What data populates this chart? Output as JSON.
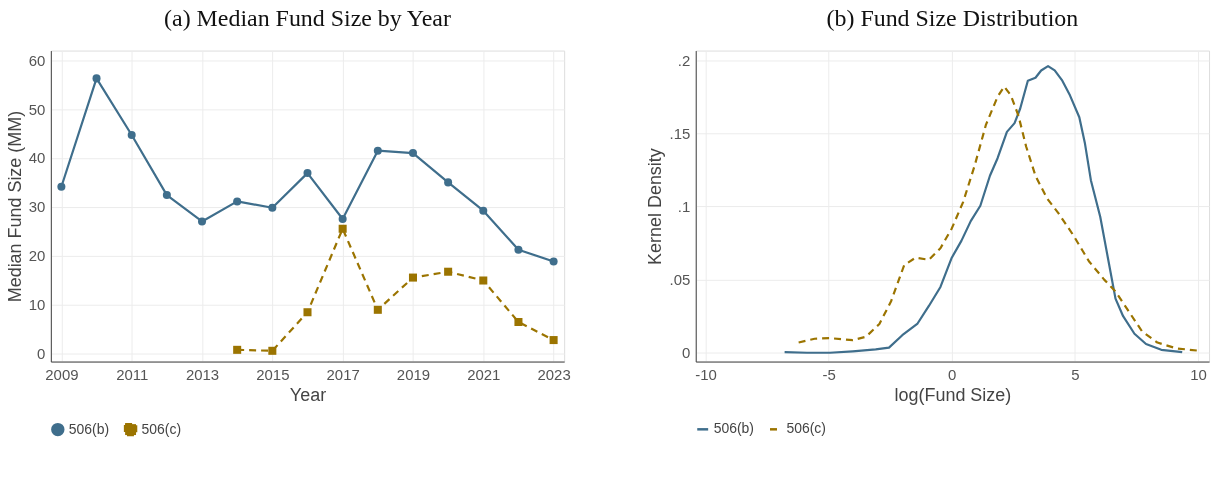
{
  "chart_data": [
    {
      "type": "line",
      "title": "(a) Median Fund Size by Year",
      "xlabel": "Year",
      "ylabel": "Median Fund Size (MM)",
      "xlim": [
        2008.7,
        2023.3
      ],
      "xticks": [
        2009,
        2011,
        2013,
        2015,
        2017,
        2019,
        2021,
        2023
      ],
      "ylim": [
        -1.7,
        62
      ],
      "yticks": [
        0,
        10,
        20,
        30,
        40,
        50,
        60
      ],
      "grid": true,
      "legend": "bottom",
      "series": [
        {
          "name": "506(b)",
          "color": "#3f6e8c",
          "marker": "circle",
          "line_style": "solid",
          "x": [
            2009,
            2010,
            2011,
            2012,
            2013,
            2014,
            2015,
            2016,
            2017,
            2018,
            2019,
            2020,
            2021,
            2022,
            2023
          ],
          "values": [
            34.1,
            56.3,
            44.7,
            32.4,
            27.0,
            31.1,
            29.8,
            36.9,
            27.5,
            41.5,
            41.0,
            35.0,
            29.2,
            21.2,
            18.8
          ]
        },
        {
          "name": "506(c)",
          "color": "#9b7400",
          "marker": "square",
          "line_style": "dashed",
          "x": [
            2014,
            2015,
            2016,
            2017,
            2018,
            2019,
            2020,
            2021,
            2022,
            2023
          ],
          "values": [
            0.7,
            0.5,
            8.4,
            25.5,
            8.9,
            15.5,
            16.7,
            14.9,
            6.4,
            2.7
          ]
        }
      ]
    },
    {
      "type": "line",
      "title": "(b) Fund Size Distribution",
      "xlabel": "log(Fund Size)",
      "ylabel": "Kernel Density",
      "xlim": [
        -10.4,
        10.45
      ],
      "xticks": [
        -10,
        -5,
        0,
        5,
        10
      ],
      "ylim": [
        -0.006,
        0.2066
      ],
      "yticks": [
        0,
        {
          "value": 0.05,
          "label": ".05"
        },
        {
          "value": 0.1,
          "label": ".1"
        },
        {
          "value": 0.15,
          "label": ".15"
        },
        {
          "value": 0.2,
          "label": ".2"
        }
      ],
      "grid": true,
      "legend": "bottom",
      "marker": "none",
      "series": [
        {
          "name": "506(b)",
          "color": "#3f6e8c",
          "line_style": "solid",
          "x": [
            -6.79,
            -5.88,
            -4.95,
            -4.02,
            -3.09,
            -2.55,
            -2.01,
            -1.39,
            -0.93,
            -0.46,
            0,
            0.39,
            0.77,
            1.16,
            1.55,
            1.86,
            2.24,
            2.55,
            2.78,
            3.09,
            3.4,
            3.63,
            3.91,
            4.18,
            4.49,
            4.8,
            5.18,
            5.41,
            5.65,
            6.03,
            6.34,
            6.65,
            6.96,
            7.42,
            7.89,
            8.51,
            9.36
          ],
          "values": [
            0.0005,
            0,
            0,
            0.001,
            0.0023,
            0.0035,
            0.012,
            0.02,
            0.032,
            0.045,
            0.065,
            0.0765,
            0.09,
            0.1005,
            0.121,
            0.133,
            0.151,
            0.157,
            0.167,
            0.186,
            0.188,
            0.193,
            0.196,
            0.193,
            0.186,
            0.176,
            0.161,
            0.143,
            0.118,
            0.093,
            0.065,
            0.037,
            0.025,
            0.013,
            0.006,
            0.002,
            0.0005
          ]
        },
        {
          "name": "506(c)",
          "color": "#9b7400",
          "line_style": "dashed",
          "x": [
            -6.22,
            -5.57,
            -4.95,
            -4.02,
            -3.48,
            -2.94,
            -2.47,
            -1.93,
            -1.47,
            -0.93,
            -0.46,
            0,
            0.46,
            0.93,
            1.39,
            1.86,
            2.13,
            2.4,
            2.71,
            3.02,
            3.4,
            3.87,
            4.33,
            4.95,
            5.57,
            6.19,
            6.65,
            7.12,
            7.73,
            8.35,
            9.12,
            9.97
          ],
          "values": [
            0.007,
            0.0096,
            0.01,
            0.0086,
            0.011,
            0.0197,
            0.035,
            0.06,
            0.065,
            0.0636,
            0.0715,
            0.085,
            0.103,
            0.128,
            0.156,
            0.175,
            0.182,
            0.176,
            0.162,
            0.141,
            0.121,
            0.1055,
            0.0955,
            0.08,
            0.0626,
            0.05,
            0.042,
            0.03,
            0.0146,
            0.007,
            0.003,
            0.0015
          ]
        }
      ]
    }
  ]
}
